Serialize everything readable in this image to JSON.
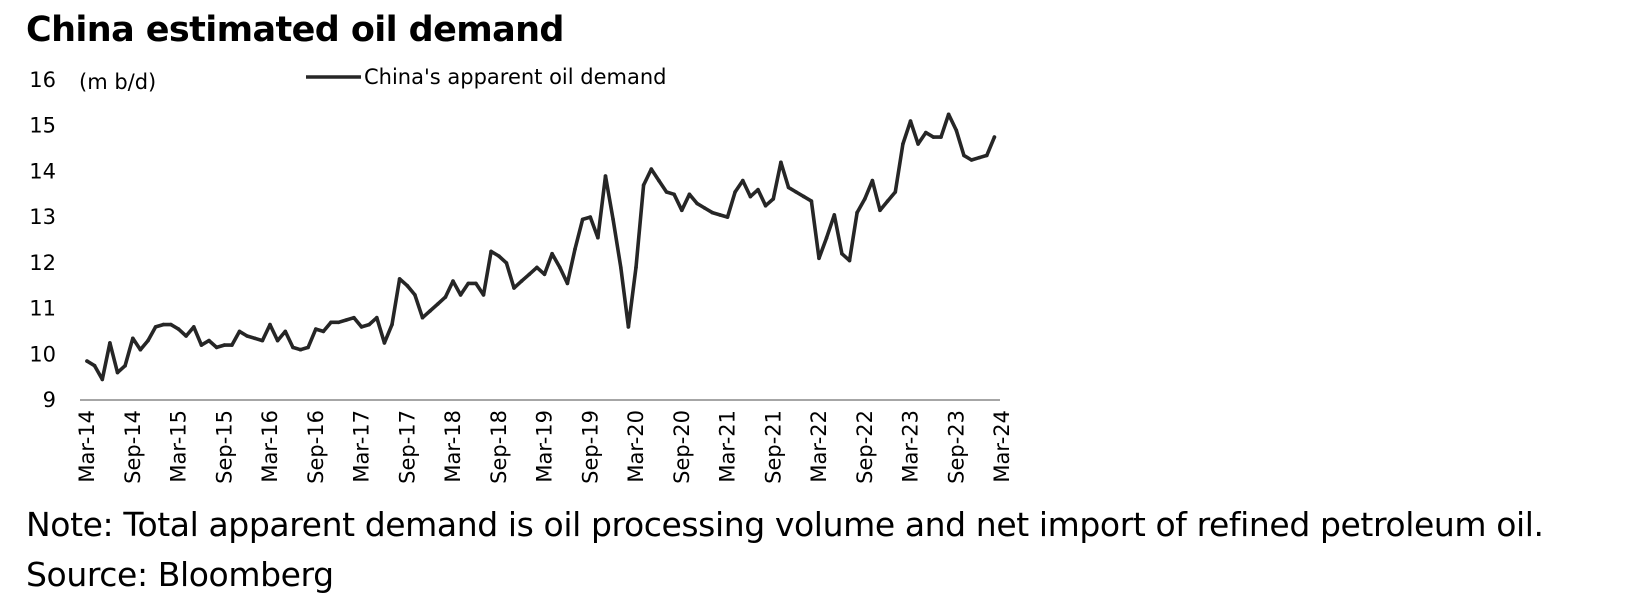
{
  "chart_data": {
    "type": "line",
    "title": "China estimated oil demand",
    "ylabel": "(m b/d)",
    "xlabel": "",
    "ylim": [
      9,
      16
    ],
    "yticks": [
      9,
      10,
      11,
      12,
      13,
      14,
      15,
      16
    ],
    "x_tick_labels": [
      "Mar-14",
      "Sep-14",
      "Mar-15",
      "Sep-15",
      "Mar-16",
      "Sep-16",
      "Mar-17",
      "Sep-17",
      "Mar-18",
      "Sep-18",
      "Mar-19",
      "Sep-19",
      "Mar-20",
      "Sep-20",
      "Mar-21",
      "Sep-21",
      "Mar-22",
      "Sep-22",
      "Mar-23",
      "Sep-23",
      "Mar-24"
    ],
    "grid": false,
    "legend_position": "top",
    "series": [
      {
        "name": "China's apparent oil demand",
        "color": "#262626",
        "start": "Mar-14",
        "frequency": "monthly",
        "values": [
          9.85,
          9.75,
          9.45,
          10.25,
          9.6,
          9.75,
          10.35,
          10.1,
          10.3,
          10.6,
          10.65,
          10.65,
          10.55,
          10.4,
          10.6,
          10.2,
          10.3,
          10.15,
          10.2,
          10.2,
          10.5,
          10.4,
          10.35,
          10.3,
          10.65,
          10.3,
          10.5,
          10.15,
          10.1,
          10.15,
          10.55,
          10.5,
          10.7,
          10.7,
          10.75,
          10.8,
          10.6,
          10.65,
          10.8,
          10.25,
          10.65,
          11.65,
          11.5,
          11.3,
          10.8,
          10.95,
          11.1,
          11.25,
          11.6,
          11.3,
          11.55,
          11.55,
          11.3,
          12.25,
          12.15,
          12.0,
          11.45,
          11.6,
          11.75,
          11.9,
          11.75,
          12.2,
          11.9,
          11.55,
          12.3,
          12.95,
          13.0,
          12.55,
          13.9,
          12.95,
          11.9,
          10.6,
          11.9,
          13.7,
          14.05,
          13.8,
          13.55,
          13.5,
          13.15,
          13.5,
          13.3,
          13.2,
          13.1,
          13.05,
          13.0,
          13.55,
          13.8,
          13.45,
          13.6,
          13.25,
          13.4,
          14.2,
          13.65,
          13.55,
          13.45,
          13.35,
          12.1,
          12.55,
          13.05,
          12.2,
          12.05,
          13.1,
          13.4,
          13.8,
          13.15,
          13.35,
          13.55,
          14.6,
          15.1,
          14.6,
          14.85,
          14.75,
          14.75,
          15.25,
          14.9,
          14.35,
          14.25,
          14.3,
          14.35,
          14.75
        ]
      }
    ]
  },
  "note": "Note: Total apparent demand is oil processing volume and net import of refined petroleum oil.",
  "source": "Source: Bloomberg"
}
